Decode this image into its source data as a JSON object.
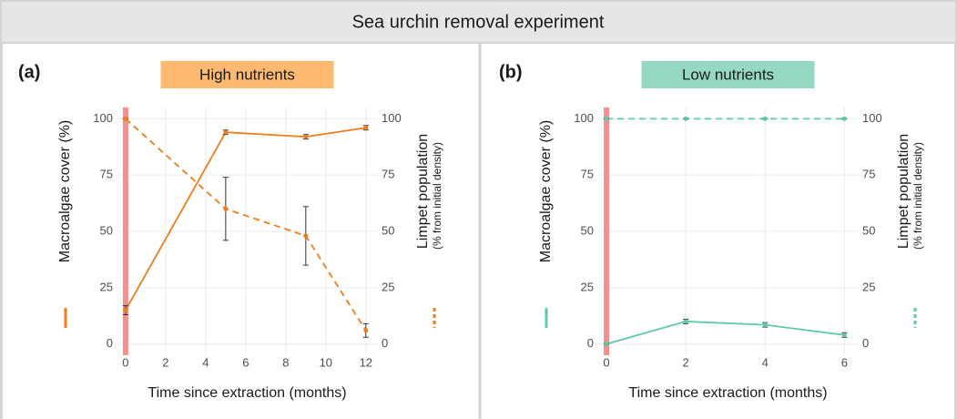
{
  "title": "Sea urchin removal experiment",
  "chart_data": [
    {
      "type": "line",
      "tag": "(a)",
      "title": "High nutrients",
      "title_bg": "#fdb96f",
      "x": [
        0,
        5,
        9,
        12
      ],
      "series": [
        {
          "name": "Macroalgae cover (%)",
          "color": "#ee7d1a",
          "dash": false,
          "values": [
            15,
            94,
            92,
            96
          ],
          "errors": [
            2,
            1,
            1,
            1
          ]
        },
        {
          "name": "Limpet population",
          "color": "#ee7d1a",
          "dash": true,
          "axis": "y2",
          "values": [
            100,
            60,
            48,
            6
          ],
          "errors": [
            0,
            14,
            13,
            3
          ]
        }
      ],
      "xlabel": "Time since extraction (months)",
      "y2_sublabel": "(% from initial density)",
      "xlim": [
        -0.45,
        12.6
      ],
      "xticks": [
        0,
        2,
        4,
        6,
        8,
        10,
        12
      ],
      "ylim": [
        -5,
        105
      ],
      "yticks": [
        0,
        25,
        50,
        75,
        100
      ],
      "y2lim": [
        -5,
        105
      ],
      "y2ticks": [
        0,
        25,
        50,
        75,
        100
      ],
      "grid": true,
      "vline": {
        "x": 0,
        "color": "#f4908e"
      }
    },
    {
      "type": "line",
      "tag": "(b)",
      "title": "Low nutrients",
      "title_bg": "#95d9c3",
      "x": [
        0,
        2,
        4,
        6
      ],
      "series": [
        {
          "name": "Macroalgae cover (%)",
          "color": "#5ec9a6",
          "dash": false,
          "values": [
            0,
            10,
            8.5,
            4
          ],
          "errors": [
            0,
            1,
            1,
            1
          ]
        },
        {
          "name": "Limpet population",
          "color": "#5ec9a6",
          "dash": true,
          "axis": "y2",
          "values": [
            100,
            100,
            100,
            100
          ],
          "errors": [
            0,
            0,
            0,
            0
          ]
        }
      ],
      "xlabel": "Time since extraction (months)",
      "y2_sublabel": "(% from initial density)",
      "xlim": [
        -0.23,
        6.36
      ],
      "xticks": [
        0,
        2,
        4,
        6
      ],
      "ylim": [
        -5,
        105
      ],
      "yticks": [
        0,
        25,
        50,
        75,
        100
      ],
      "y2lim": [
        -5,
        105
      ],
      "y2ticks": [
        0,
        25,
        50,
        75,
        100
      ],
      "grid": true,
      "vline": {
        "x": 0,
        "color": "#f4908e"
      }
    }
  ]
}
